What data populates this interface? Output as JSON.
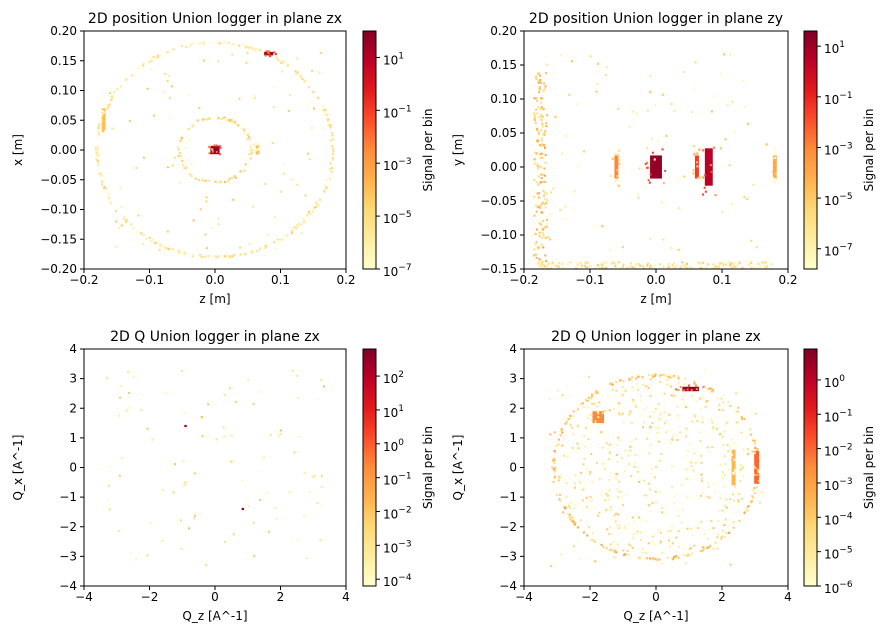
{
  "chart_data": [
    {
      "type": "heatmap",
      "title": "2D position Union logger in plane zx",
      "xlabel": "z [m]",
      "ylabel": "x [m]",
      "xlim": [
        -0.2,
        0.2
      ],
      "ylim": [
        -0.2,
        0.2
      ],
      "xticks": [
        "−0.2",
        "−0.1",
        "0.0",
        "0.1",
        "0.2"
      ],
      "yticks": [
        "−0.20",
        "−0.15",
        "−0.10",
        "−0.05",
        "0.00",
        "0.05",
        "0.10",
        "0.15",
        "0.20"
      ],
      "colorbar": {
        "label": "Signal per bin",
        "scale": "log",
        "range_exp": [
          -7,
          2
        ],
        "ticks": [
          "10^-7",
          "10^-5",
          "10^-3",
          "10^-1",
          "10^1"
        ]
      },
      "features": [
        {
          "shape": "ring",
          "center": [
            0.0,
            0.0
          ],
          "radius": 0.18,
          "level_exp": -5.5
        },
        {
          "shape": "ring",
          "center": [
            0.0,
            0.0
          ],
          "radius": 0.055,
          "level_exp": -5
        },
        {
          "shape": "blob",
          "center": [
            0.0,
            0.0
          ],
          "size": [
            0.014,
            0.014
          ],
          "level_exp": 1.5
        },
        {
          "shape": "blob",
          "center": [
            0.082,
            0.162
          ],
          "size": [
            0.014,
            0.006
          ],
          "level_exp": 1.5
        },
        {
          "shape": "blob",
          "center": [
            -0.17,
            0.05
          ],
          "size": [
            0.006,
            0.04
          ],
          "level_exp": -4
        },
        {
          "shape": "blob",
          "center": [
            0.065,
            0.0
          ],
          "size": [
            0.006,
            0.015
          ],
          "level_exp": -4
        }
      ]
    },
    {
      "type": "heatmap",
      "title": "2D position Union logger in plane zy",
      "xlabel": "z [m]",
      "ylabel": "y [m]",
      "xlim": [
        -0.2,
        0.2
      ],
      "ylim": [
        -0.15,
        0.2
      ],
      "xticks": [
        "−0.2",
        "−0.1",
        "0.0",
        "0.1",
        "0.2"
      ],
      "yticks": [
        "−0.15",
        "−0.10",
        "−0.05",
        "0.00",
        "0.05",
        "0.10",
        "0.15",
        "0.20"
      ],
      "colorbar": {
        "label": "Signal per bin",
        "scale": "log",
        "range_exp": [
          -7.8,
          1.6
        ],
        "ticks": [
          "10^-7",
          "10^-5",
          "10^-3",
          "10^-1",
          "10^1"
        ]
      },
      "features": [
        {
          "shape": "blob",
          "center": [
            0.0,
            0.0
          ],
          "size": [
            0.018,
            0.034
          ],
          "level_exp": 1.2
        },
        {
          "shape": "blob",
          "center": [
            0.08,
            0.0
          ],
          "size": [
            0.012,
            0.055
          ],
          "level_exp": 0.5
        },
        {
          "shape": "blob",
          "center": [
            0.062,
            0.0
          ],
          "size": [
            0.006,
            0.034
          ],
          "level_exp": -1.5
        },
        {
          "shape": "blob",
          "center": [
            -0.06,
            0.0
          ],
          "size": [
            0.006,
            0.034
          ],
          "level_exp": -3
        },
        {
          "shape": "blob",
          "center": [
            0.18,
            0.0
          ],
          "size": [
            0.006,
            0.034
          ],
          "level_exp": -4
        },
        {
          "shape": "band",
          "center": [
            -0.175,
            0.0
          ],
          "size": [
            0.02,
            0.28
          ],
          "level_exp": -5
        },
        {
          "shape": "band",
          "center": [
            0.0,
            -0.145
          ],
          "size": [
            0.36,
            0.01
          ],
          "level_exp": -6
        }
      ]
    },
    {
      "type": "heatmap",
      "title": "2D Q Union logger in plane zx",
      "xlabel": "Q_z [A^-1]",
      "ylabel": "Q_x [A^-1]",
      "xlim": [
        -4,
        4
      ],
      "ylim": [
        -4,
        4
      ],
      "xticks": [
        "−4",
        "−2",
        "0",
        "2",
        "4"
      ],
      "yticks": [
        "−4",
        "−3",
        "−2",
        "−1",
        "0",
        "1",
        "2",
        "3",
        "4"
      ],
      "colorbar": {
        "label": "Signal per bin",
        "scale": "log",
        "range_exp": [
          -4.2,
          2.8
        ],
        "ticks": [
          "10^-4",
          "10^-3",
          "10^-2",
          "10^-1",
          "10^0",
          "10^1",
          "10^2"
        ]
      },
      "features": [
        {
          "shape": "point",
          "center": [
            -0.9,
            1.4
          ],
          "level_exp": 2.5
        },
        {
          "shape": "point",
          "center": [
            0.85,
            -1.4
          ],
          "level_exp": 2.5
        },
        {
          "shape": "point",
          "center": [
            -0.4,
            1.7
          ],
          "level_exp": -2
        },
        {
          "shape": "point",
          "center": [
            0.5,
            0.2
          ],
          "level_exp": -2.5
        },
        {
          "shape": "point",
          "center": [
            -0.9,
            -0.5
          ],
          "level_exp": -2.8
        },
        {
          "shape": "point",
          "center": [
            1.7,
            1.1
          ],
          "level_exp": -3
        }
      ]
    },
    {
      "type": "heatmap",
      "title": "2D Q Union logger in plane zx",
      "xlabel": "Q_z [A^-1]",
      "ylabel": "Q_x [A^-1]",
      "xlim": [
        -4,
        4
      ],
      "ylim": [
        -4,
        4
      ],
      "xticks": [
        "−4",
        "−2",
        "0",
        "2",
        "4"
      ],
      "yticks": [
        "−4",
        "−3",
        "−2",
        "−1",
        "0",
        "1",
        "2",
        "3",
        "4"
      ],
      "colorbar": {
        "label": "Signal per bin",
        "scale": "log",
        "range_exp": [
          -6,
          0.9
        ],
        "ticks": [
          "10^-6",
          "10^-5",
          "10^-4",
          "10^-3",
          "10^-2",
          "10^-1",
          "10^0"
        ]
      },
      "features": [
        {
          "shape": "ring",
          "center": [
            0.0,
            0.0
          ],
          "radius": 3.1,
          "level_exp": -4
        },
        {
          "shape": "fill",
          "center": [
            0.0,
            0.0
          ],
          "radius": 3.0,
          "level_exp": -5
        },
        {
          "shape": "blob",
          "center": [
            1.05,
            2.65
          ],
          "size": [
            0.5,
            0.15
          ],
          "level_exp": 0.6
        },
        {
          "shape": "blob",
          "center": [
            -1.75,
            1.7
          ],
          "size": [
            0.35,
            0.4
          ],
          "level_exp": -2.5
        },
        {
          "shape": "blob",
          "center": [
            3.05,
            0.0
          ],
          "size": [
            0.15,
            1.1
          ],
          "level_exp": -2
        },
        {
          "shape": "blob",
          "center": [
            2.35,
            0.0
          ],
          "size": [
            0.12,
            1.2
          ],
          "level_exp": -3.5
        }
      ]
    }
  ]
}
